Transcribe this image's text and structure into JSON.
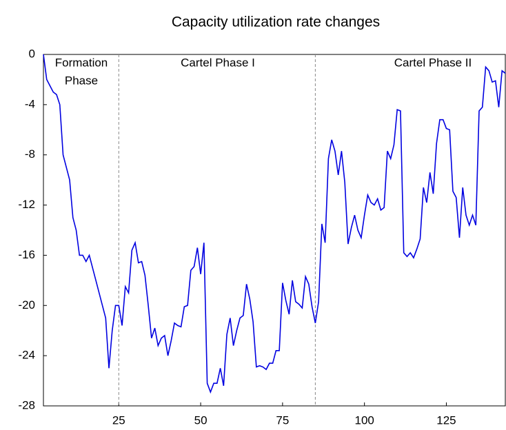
{
  "chart_data": {
    "type": "line",
    "title": "Capacity utilization rate changes",
    "x": [
      2,
      3,
      4,
      5,
      6,
      7,
      8,
      9,
      10,
      11,
      12,
      13,
      14,
      15,
      16,
      17,
      18,
      19,
      20,
      21,
      22,
      23,
      24,
      25,
      26,
      27,
      28,
      29,
      30,
      31,
      32,
      33,
      34,
      35,
      36,
      37,
      38,
      39,
      40,
      41,
      42,
      43,
      44,
      45,
      46,
      47,
      48,
      49,
      50,
      51,
      52,
      53,
      54,
      55,
      56,
      57,
      58,
      59,
      60,
      61,
      62,
      63,
      64,
      65,
      66,
      67,
      68,
      69,
      70,
      71,
      72,
      73,
      74,
      75,
      76,
      77,
      78,
      79,
      80,
      81,
      82,
      83,
      84,
      85,
      86,
      87,
      88,
      89,
      90,
      91,
      92,
      93,
      94,
      95,
      96,
      97,
      98,
      99,
      100,
      101,
      102,
      103,
      104,
      105,
      106,
      107,
      108,
      109,
      110,
      111,
      112,
      113,
      114,
      115,
      116,
      117,
      118,
      119,
      120,
      121,
      122,
      123,
      124,
      125,
      126,
      127,
      128,
      129,
      130,
      131,
      132,
      133,
      134,
      135,
      136,
      137,
      138,
      139,
      140,
      141,
      142,
      143
    ],
    "series": [
      {
        "name": "Capacity utilization rate changes",
        "color": "#0000e0",
        "values": [
          0,
          -2,
          -2.5,
          -3,
          -3.2,
          -4,
          -8,
          -9,
          -10,
          -13,
          -14,
          -16,
          -16,
          -16.5,
          -16,
          -17,
          -18,
          -19,
          -20,
          -21,
          -25,
          -22,
          -20,
          -20,
          -21.6,
          -18.5,
          -19,
          -15.6,
          -15,
          -16.6,
          -16.5,
          -17.6,
          -20,
          -22.6,
          -21.8,
          -23.2,
          -22.6,
          -22.4,
          -24,
          -22.8,
          -21.4,
          -21.6,
          -21.7,
          -20.1,
          -20,
          -17.2,
          -16.9,
          -15.4,
          -17.5,
          -15,
          -26.2,
          -26.9,
          -26.2,
          -26.2,
          -25,
          -26.4,
          -22.3,
          -21,
          -23.2,
          -22,
          -21,
          -20.8,
          -18.3,
          -19.5,
          -21.3,
          -24.9,
          -24.8,
          -24.9,
          -25.1,
          -24.6,
          -24.6,
          -23.6,
          -23.6,
          -18.2,
          -19.6,
          -20.7,
          -18,
          -19.7,
          -19.9,
          -20.2,
          -17.7,
          -18.3,
          -20.1,
          -21.4,
          -19.7,
          -13.5,
          -15,
          -8.3,
          -6.8,
          -7.7,
          -9.6,
          -7.7,
          -10.2,
          -15.1,
          -13.8,
          -12.8,
          -14,
          -14.6,
          -12.8,
          -11.2,
          -11.8,
          -12,
          -11.5,
          -12.4,
          -12.2,
          -7.7,
          -8.3,
          -7.2,
          -4.4,
          -4.5,
          -15.8,
          -16.1,
          -15.8,
          -16.2,
          -15.5,
          -14.7,
          -10.6,
          -11.8,
          -9.4,
          -11.1,
          -7.1,
          -5.2,
          -5.2,
          -5.9,
          -6,
          -10.9,
          -11.4,
          -14.6,
          -10.6,
          -12.8,
          -13.6,
          -12.8,
          -13.6,
          -4.5,
          -4.2,
          -1,
          -1.3,
          -2.2,
          -2.1,
          -4.2,
          -1.3,
          -1.5
        ]
      }
    ],
    "xlim": [
      2,
      143
    ],
    "ylim": [
      -28,
      0
    ],
    "xticks": [
      25,
      50,
      75,
      100,
      125
    ],
    "yticks": [
      -28,
      -24,
      -20,
      -16,
      -12,
      -8,
      -4,
      0
    ],
    "vlines": [
      25,
      85
    ],
    "annotations": [
      "Formation",
      "Phase",
      "Cartel Phase I",
      "Cartel Phase II"
    ]
  }
}
